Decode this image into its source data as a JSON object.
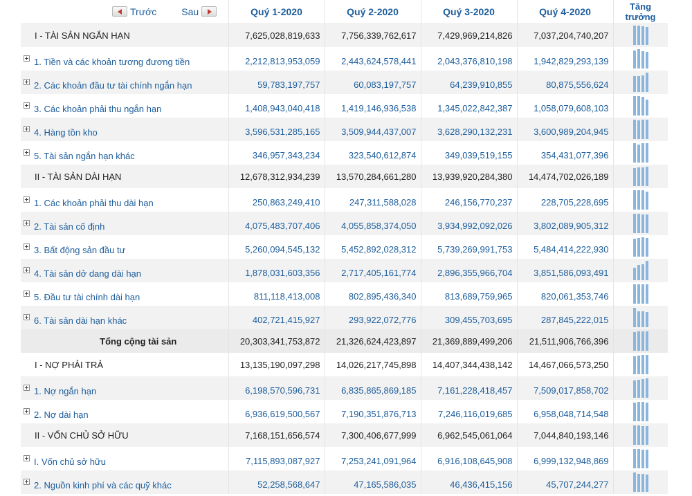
{
  "header": {
    "prev_label": "Trước",
    "next_label": "Sau",
    "quarters": [
      "Quý 1-2020",
      "Quý 2-2020",
      "Quý 3-2020",
      "Quý 4-2020"
    ],
    "growth_line1": "Tăng",
    "growth_line2": "trưởng"
  },
  "rows": [
    {
      "type": "section",
      "label": "I - TÀI SẢN NGẮN HẠN",
      "values": [
        "7,625,028,819,633",
        "7,756,339,762,617",
        "7,429,969,214,826",
        "7,037,204,740,207"
      ],
      "trend": [
        0.98,
        1.0,
        0.96,
        0.91
      ]
    },
    {
      "type": "item",
      "label": "1. Tiền và các khoản tương đương tiền",
      "values": [
        "2,212,813,953,059",
        "2,443,624,578,441",
        "2,043,376,810,198",
        "1,942,829,293,139"
      ],
      "trend": [
        0.91,
        1.0,
        0.84,
        0.8
      ]
    },
    {
      "type": "item",
      "label": "2. Các khoản đầu tư tài chính ngắn hạn",
      "values": [
        "59,783,197,757",
        "60,083,197,757",
        "64,239,910,855",
        "80,875,556,624"
      ],
      "trend": [
        0.74,
        0.74,
        0.79,
        1.0
      ]
    },
    {
      "type": "item",
      "label": "3. Các khoản phải thu ngắn hạn",
      "values": [
        "1,408,943,040,418",
        "1,419,146,936,538",
        "1,345,022,842,387",
        "1,058,079,608,103"
      ],
      "trend": [
        0.99,
        1.0,
        0.95,
        0.75
      ]
    },
    {
      "type": "item",
      "label": "4. Hàng tồn kho",
      "values": [
        "3,596,531,285,165",
        "3,509,944,437,007",
        "3,628,290,132,231",
        "3,600,989,204,945"
      ],
      "trend": [
        0.99,
        0.97,
        1.0,
        0.99
      ]
    },
    {
      "type": "item",
      "label": "5. Tài sản ngắn hạn khác",
      "values": [
        "346,957,343,234",
        "323,540,612,874",
        "349,039,519,155",
        "354,431,077,396"
      ],
      "trend": [
        0.98,
        0.91,
        0.98,
        1.0
      ]
    },
    {
      "type": "section",
      "label": "II - TÀI SẢN DÀI HẠN",
      "values": [
        "12,678,312,934,239",
        "13,570,284,661,280",
        "13,939,920,284,380",
        "14,474,702,026,189"
      ],
      "trend": [
        0.88,
        0.94,
        0.96,
        1.0
      ]
    },
    {
      "type": "item",
      "label": "1. Các khoản phải thu dài hạn",
      "values": [
        "250,863,249,410",
        "247,311,588,028",
        "246,156,770,237",
        "228,705,228,695"
      ],
      "trend": [
        1.0,
        0.99,
        0.98,
        0.91
      ]
    },
    {
      "type": "item",
      "label": "2. Tài sản cố định",
      "values": [
        "4,075,483,707,406",
        "4,055,858,374,050",
        "3,934,992,092,026",
        "3,802,089,905,312"
      ],
      "trend": [
        1.0,
        0.99,
        0.97,
        0.93
      ]
    },
    {
      "type": "item",
      "label": "3. Bất động sản đầu tư",
      "values": [
        "5,260,094,545,132",
        "5,452,892,028,312",
        "5,739,269,991,753",
        "5,484,414,222,930"
      ],
      "trend": [
        0.92,
        0.95,
        1.0,
        0.96
      ]
    },
    {
      "type": "item",
      "label": "4. Tài sản dở dang dài hạn",
      "values": [
        "1,878,031,603,356",
        "2,717,405,161,774",
        "2,896,355,966,704",
        "3,851,586,093,491"
      ],
      "trend": [
        0.49,
        0.71,
        0.75,
        1.0
      ]
    },
    {
      "type": "item",
      "label": "5. Đầu tư tài chính dài hạn",
      "values": [
        "811,118,413,008",
        "802,895,436,340",
        "813,689,759,965",
        "820,061,353,746"
      ],
      "trend": [
        0.99,
        0.98,
        0.99,
        1.0
      ]
    },
    {
      "type": "item",
      "label": "6. Tài sản dài hạn khác",
      "values": [
        "402,721,415,927",
        "293,922,072,776",
        "309,455,703,695",
        "287,845,222,015"
      ],
      "trend": [
        1.0,
        0.73,
        0.77,
        0.71
      ]
    },
    {
      "type": "total",
      "label": "Tổng cộng tài sản",
      "values": [
        "20,303,341,753,872",
        "21,326,624,423,897",
        "21,369,889,499,206",
        "21,511,906,766,396"
      ],
      "trend": [
        0.94,
        0.99,
        0.99,
        1.0
      ]
    },
    {
      "type": "section",
      "label": "I - NỢ PHẢI TRẢ",
      "values": [
        "13,135,190,097,298",
        "14,026,217,745,898",
        "14,407,344,438,142",
        "14,467,066,573,250"
      ],
      "trend": [
        0.91,
        0.97,
        1.0,
        1.0
      ]
    },
    {
      "type": "item",
      "label": "1. Nợ ngắn hạn",
      "values": [
        "6,198,570,596,731",
        "6,835,865,869,185",
        "7,161,228,418,457",
        "7,509,017,858,702"
      ],
      "trend": [
        0.83,
        0.91,
        0.95,
        1.0
      ]
    },
    {
      "type": "item",
      "label": "2. Nợ dài hạn",
      "values": [
        "6,936,619,500,567",
        "7,190,351,876,713",
        "7,246,116,019,685",
        "6,958,048,714,548"
      ],
      "trend": [
        0.96,
        0.99,
        1.0,
        0.96
      ]
    },
    {
      "type": "section",
      "label": "II - VỐN CHỦ SỞ HỮU",
      "values": [
        "7,168,151,656,574",
        "7,300,406,677,999",
        "6,962,545,061,064",
        "7,044,840,193,146"
      ],
      "trend": [
        0.98,
        1.0,
        0.95,
        0.96
      ]
    },
    {
      "type": "item",
      "label": "I. Vốn chủ sở hữu",
      "values": [
        "7,115,893,087,927",
        "7,253,241,091,964",
        "6,916,108,645,908",
        "6,999,132,948,869"
      ],
      "trend": [
        0.98,
        1.0,
        0.95,
        0.96
      ]
    },
    {
      "type": "item",
      "label": "2. Nguồn kinh phí và các quỹ khác",
      "values": [
        "52,258,568,647",
        "47,165,586,035",
        "46,436,415,156",
        "45,707,244,277"
      ],
      "trend": [
        1.0,
        0.9,
        0.89,
        0.87
      ]
    }
  ],
  "colors": {
    "link_blue": "#1c5d9c",
    "spark_blue": "#8ab6dd",
    "nav_arrow_red": "#c0392b",
    "row_shade": "#f2f2f2"
  }
}
